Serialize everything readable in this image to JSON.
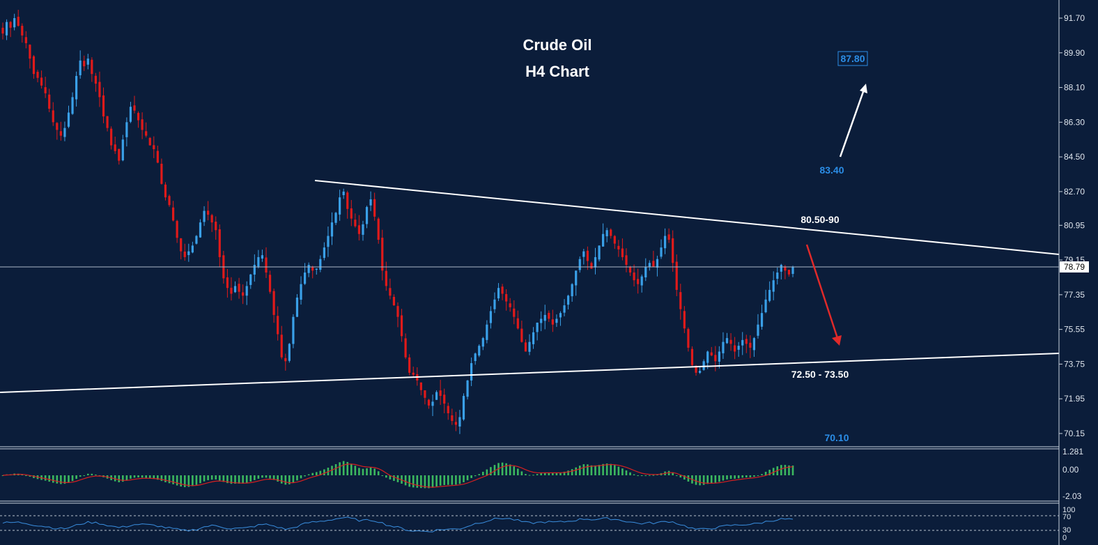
{
  "chart_data": [
    {
      "type": "candlestick",
      "title": "Crude Oil",
      "subtitle": "H4 Chart",
      "ylim": [
        69.5,
        92.6
      ],
      "y_ticks": [
        "91.70",
        "89.90",
        "88.10",
        "86.30",
        "84.50",
        "82.70",
        "80.95",
        "79.15",
        "77.35",
        "75.55",
        "73.75",
        "71.95",
        "70.15"
      ],
      "current_price": "78.79",
      "series": [
        {
          "name": "",
          "values": [
            90.9,
            91.5,
            91.2,
            91.7,
            91.3,
            90.8,
            90.4,
            89.6,
            88.8,
            88.6,
            88.2,
            87.8,
            87.0,
            86.3,
            85.9,
            85.6,
            86.0,
            86.8,
            87.6,
            88.7,
            89.5,
            89.2,
            89.6,
            88.8,
            88.3,
            87.6,
            86.6,
            86.0,
            85.1,
            84.8,
            84.3,
            85.4,
            86.3,
            87.1,
            86.9,
            86.4,
            85.9,
            85.6,
            85.1,
            84.9,
            84.2,
            83.1,
            82.4,
            82.0,
            81.2,
            80.3,
            79.6,
            79.3,
            79.6,
            79.9,
            80.4,
            81.1,
            81.7,
            81.5,
            81.1,
            80.7,
            79.3,
            78.2,
            77.7,
            77.4,
            77.8,
            77.5,
            77.3,
            77.8,
            78.4,
            78.9,
            79.3,
            79.4,
            78.5,
            77.5,
            76.3,
            75.3,
            74.1,
            73.9,
            74.8,
            76.2,
            77.2,
            77.9,
            78.5,
            78.9,
            78.6,
            78.7,
            79.2,
            79.8,
            80.4,
            81.1,
            81.6,
            82.4,
            82.7,
            81.8,
            81.3,
            80.9,
            80.5,
            81.0,
            81.9,
            82.3,
            81.4,
            80.2,
            78.6,
            77.8,
            77.3,
            76.8,
            76.2,
            75.2,
            74.1,
            73.3,
            73.2,
            72.9,
            72.4,
            72.0,
            71.6,
            71.8,
            72.3,
            72.1,
            71.7,
            71.2,
            70.8,
            70.6,
            71.0,
            72.1,
            72.9,
            73.8,
            74.3,
            74.7,
            75.1,
            75.8,
            76.5,
            77.1,
            77.7,
            77.4,
            77.0,
            76.7,
            76.2,
            75.6,
            74.9,
            74.4,
            74.9,
            75.4,
            75.9,
            76.1,
            76.3,
            76.1,
            75.8,
            76.1,
            76.4,
            76.8,
            77.3,
            77.9,
            78.6,
            79.2,
            79.6,
            79.1,
            78.7,
            79.3,
            79.9,
            80.5,
            80.7,
            80.4,
            80.0,
            79.7,
            79.3,
            78.9,
            78.5,
            78.1,
            77.9,
            78.3,
            78.8,
            79.0,
            78.8,
            79.2,
            79.8,
            80.4,
            80.2,
            79.0,
            77.6,
            76.6,
            75.6,
            74.6,
            73.7,
            73.3,
            73.4,
            73.9,
            74.4,
            74.2,
            73.9,
            74.4,
            74.9,
            75.1,
            74.8,
            74.4,
            74.7,
            75.0,
            74.8,
            74.6,
            75.1,
            75.8,
            76.4,
            77.1,
            77.6,
            78.1,
            78.5,
            78.9,
            78.6,
            78.4,
            78.79
          ]
        }
      ]
    },
    {
      "type": "bar",
      "indicator": "oscillator histogram",
      "ylim": [
        -2.03,
        1.281
      ],
      "y_ticks": [
        "1.281",
        "0.00",
        "-2.03"
      ]
    },
    {
      "type": "line",
      "indicator": "oscillator",
      "ylim": [
        20,
        100
      ],
      "y_ticks": [
        "100",
        "70",
        "30",
        "0"
      ]
    }
  ],
  "annotations": {
    "target_up": "87.80",
    "level_83": "83.40",
    "resistance": "80.50-90",
    "support": "72.50 - 73.50",
    "level_70": "70.10"
  },
  "colors": {
    "background": "#0b1d3a",
    "bull_candle": "#3aa0e8",
    "bear_candle": "#e01a1a",
    "histogram": "#3cb85f",
    "signal_line": "#d82020",
    "indicator_line": "#3a8fe0",
    "label_blue": "#2b8de6",
    "trendline": "#ffffff",
    "arrow_down": "#e02a2a"
  }
}
